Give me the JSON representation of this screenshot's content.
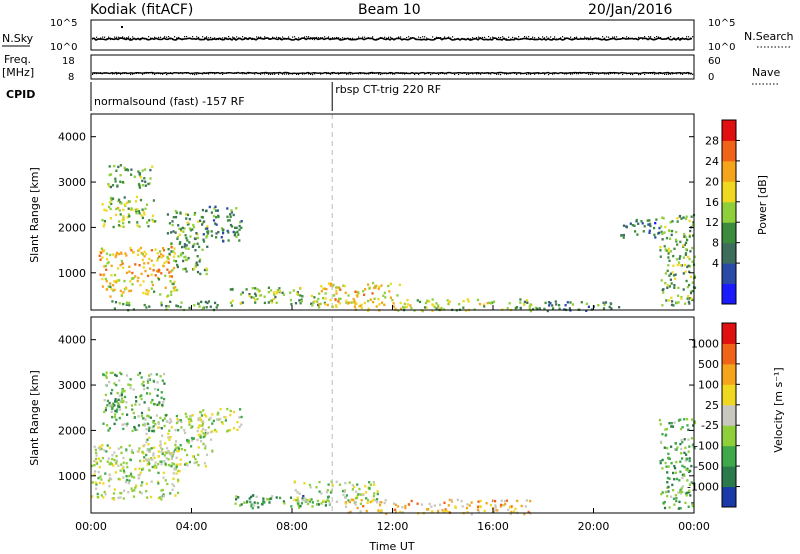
{
  "header": {
    "station": "Kodiak (fitACF)",
    "beam": "Beam 10",
    "date": "20/Jan/2016"
  },
  "strips": {
    "nsky_label": "N.Sky",
    "nsky_ticks": [
      "10^5",
      "10^0"
    ],
    "nsearch_label": "N.Search",
    "nsearch_ticks": [
      "10^5",
      "10^0"
    ],
    "freq_label_1": "Freq.",
    "freq_label_2": "[MHz]",
    "freq_ticks": [
      "18",
      "8"
    ],
    "nave_label": "Nave",
    "nave_ticks": [
      "60",
      "0"
    ],
    "cpid_label": "CPID",
    "cpid_segments": [
      {
        "label": "normalsound (fast) -157 RF",
        "start_hour": 0
      },
      {
        "label": "rbsp CT-trig 220 RF",
        "start_hour": 9.6
      }
    ]
  },
  "chart_data": [
    {
      "type": "heatmap",
      "panel": "power",
      "ylabel": "Slant Range [km]",
      "yticks": [
        "4000",
        "3000",
        "2000",
        "1000"
      ],
      "ylim": [
        180,
        4500
      ],
      "xlim": [
        0,
        24
      ],
      "colorbar_label": "Power [dB]",
      "colorbar_ticks": [
        "28",
        "24",
        "20",
        "16",
        "12",
        "8",
        "4"
      ],
      "colors": [
        "#1a1aff",
        "#2a4aa8",
        "#3d6e5c",
        "#3d8c3d",
        "#8fcf3a",
        "#f0d820",
        "#f5a51c",
        "#f06418",
        "#e01010"
      ],
      "separator_hour": 9.6,
      "clusters": [
        {
          "h0": 0.3,
          "h1": 3.3,
          "r0": 900,
          "r1": 1600,
          "v": 0.72
        },
        {
          "h0": 0.4,
          "h1": 3.4,
          "r0": 500,
          "r1": 900,
          "v": 0.6
        },
        {
          "h0": 0.4,
          "h1": 2.6,
          "r0": 2000,
          "r1": 2700,
          "v": 0.5
        },
        {
          "h0": 0.6,
          "h1": 2.4,
          "r0": 2900,
          "r1": 3400,
          "v": 0.4
        },
        {
          "h0": 3.0,
          "h1": 4.6,
          "r0": 1000,
          "r1": 2400,
          "v": 0.4
        },
        {
          "h0": 4.4,
          "h1": 6.0,
          "r0": 1700,
          "r1": 2500,
          "v": 0.3
        },
        {
          "h0": 0.8,
          "h1": 5.0,
          "r0": 200,
          "r1": 400,
          "v": 0.35
        },
        {
          "h0": 5.5,
          "h1": 9.3,
          "r0": 300,
          "r1": 700,
          "v": 0.45
        },
        {
          "h0": 9.0,
          "h1": 12.3,
          "r0": 180,
          "r1": 800,
          "v": 0.65
        },
        {
          "h0": 12.0,
          "h1": 17.5,
          "r0": 180,
          "r1": 450,
          "v": 0.55
        },
        {
          "h0": 17.0,
          "h1": 21.0,
          "r0": 180,
          "r1": 400,
          "v": 0.3
        },
        {
          "h0": 21.0,
          "h1": 22.7,
          "r0": 1800,
          "r1": 2200,
          "v": 0.25
        },
        {
          "h0": 22.6,
          "h1": 24.0,
          "r0": 300,
          "r1": 2300,
          "v": 0.45
        }
      ]
    },
    {
      "type": "heatmap",
      "panel": "velocity",
      "ylabel": "Slant Range [km]",
      "yticks": [
        "4000",
        "3000",
        "2000",
        "1000"
      ],
      "ylim": [
        180,
        4500
      ],
      "xlim": [
        0,
        24
      ],
      "xticks": [
        "00:00",
        "04:00",
        "08:00",
        "12:00",
        "16:00",
        "20:00",
        "00:00"
      ],
      "xlabel": "Time UT",
      "colorbar_label": "Velocity [m s⁻¹]",
      "colorbar_ticks": [
        "1000",
        "500",
        "100",
        "25",
        "-25",
        "-100",
        "-500",
        "-1000"
      ],
      "colors": [
        "#1a3aa8",
        "#2b7a4b",
        "#3ea84a",
        "#8fcf3a",
        "#c8c8c0",
        "#f0d820",
        "#f5a51c",
        "#f06418",
        "#e01010"
      ],
      "separator_hour": 9.6,
      "clusters": [
        {
          "h0": 0.0,
          "h1": 3.5,
          "r0": 500,
          "r1": 1700,
          "v": 0.45
        },
        {
          "h0": 2.0,
          "h1": 4.8,
          "r0": 1200,
          "r1": 2400,
          "v": 0.45
        },
        {
          "h0": 0.4,
          "h1": 3.0,
          "r0": 2000,
          "r1": 3300,
          "v": 0.3
        },
        {
          "h0": 4.3,
          "h1": 6.0,
          "r0": 2000,
          "r1": 2500,
          "v": 0.45
        },
        {
          "h0": 5.5,
          "h1": 9.5,
          "r0": 300,
          "r1": 600,
          "v": 0.25
        },
        {
          "h0": 8.0,
          "h1": 11.5,
          "r0": 400,
          "r1": 900,
          "v": 0.42
        },
        {
          "h0": 10.0,
          "h1": 17.5,
          "r0": 180,
          "r1": 500,
          "v": 0.65
        },
        {
          "h0": 22.6,
          "h1": 24.0,
          "r0": 300,
          "r1": 2300,
          "v": 0.3
        }
      ]
    }
  ]
}
